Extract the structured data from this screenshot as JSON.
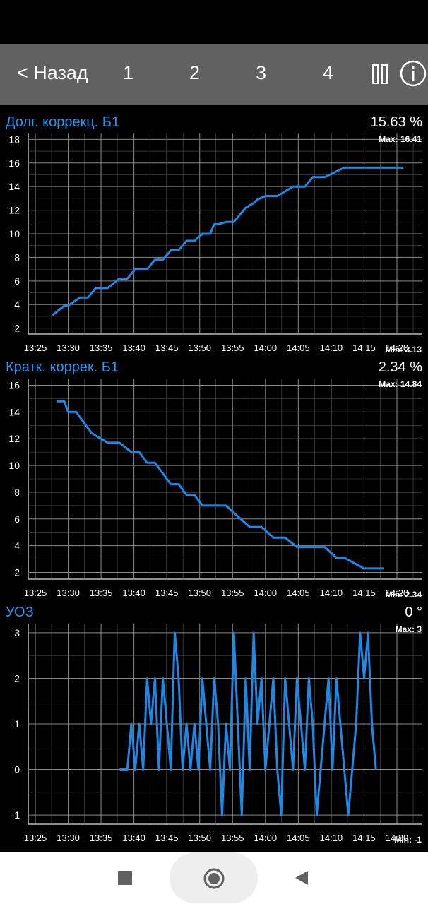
{
  "nav": {
    "back_label": "< Назад",
    "tabs": [
      "1",
      "2",
      "3",
      "4"
    ],
    "pause_icon": "pause-icon",
    "info_icon": "info-icon"
  },
  "colors": {
    "series": "#1e88e5",
    "title": "#2196f3",
    "grid": "#8a8a8a",
    "topbar": "#616161"
  },
  "panels": [
    {
      "title": "Долг. коррекц. Б1",
      "value": "15.63",
      "unit": "%",
      "max_label": "Max: 16.41",
      "min_label": "Min: 3.13"
    },
    {
      "title": "Кратк. коррек. Б1",
      "value": "2.34",
      "unit": "%",
      "max_label": "Max: 14.84",
      "min_label": "Min: 2.34"
    },
    {
      "title": "УОЗ",
      "value": "0",
      "unit": "°",
      "max_label": "Max: 3",
      "min_label": "Min: -1"
    }
  ],
  "chart_data": [
    {
      "type": "line",
      "xticks": [
        "13:25",
        "13:30",
        "13:35",
        "13:40",
        "13:45",
        "13:50",
        "13:55",
        "14:00",
        "14:05",
        "14:10",
        "14:15",
        "14:20"
      ],
      "yticks": [
        2,
        4,
        6,
        8,
        10,
        12,
        14,
        16,
        18
      ],
      "ylim": [
        1.5,
        18.5
      ],
      "x": [
        13.46,
        13.49,
        13.5,
        13.53,
        13.55,
        13.57,
        13.6,
        13.63,
        13.65,
        13.67,
        13.7,
        13.72,
        13.74,
        13.76,
        13.78,
        13.8,
        13.82,
        13.84,
        13.86,
        13.87,
        13.88,
        13.9,
        13.92,
        13.93,
        13.94,
        13.95,
        13.96,
        13.97,
        13.98,
        14.0,
        14.03,
        14.07,
        14.1,
        14.12,
        14.15,
        14.2,
        14.25,
        14.3,
        14.35
      ],
      "series": [
        {
          "values": [
            3.1,
            3.9,
            3.9,
            4.6,
            4.6,
            5.4,
            5.4,
            6.2,
            6.2,
            7.0,
            7.0,
            7.8,
            7.8,
            8.6,
            8.6,
            9.4,
            9.4,
            10.0,
            10.0,
            10.8,
            10.8,
            11.0,
            11.0,
            11.4,
            11.8,
            12.2,
            12.4,
            12.6,
            12.9,
            13.2,
            13.2,
            14.0,
            14.0,
            14.8,
            14.8,
            15.6,
            15.6,
            15.6,
            15.6
          ]
        }
      ]
    },
    {
      "type": "line",
      "xticks": [
        "13:25",
        "13:30",
        "13:35",
        "13:40",
        "13:45",
        "13:50",
        "13:55",
        "14:00",
        "14:05",
        "14:10",
        "14:15",
        "14:20"
      ],
      "yticks": [
        2,
        4,
        6,
        8,
        10,
        12,
        14,
        16
      ],
      "ylim": [
        1.5,
        16.5
      ],
      "x": [
        13.47,
        13.49,
        13.5,
        13.52,
        13.54,
        13.56,
        13.6,
        13.63,
        13.66,
        13.68,
        13.7,
        13.72,
        13.74,
        13.76,
        13.78,
        13.8,
        13.82,
        13.84,
        13.87,
        13.9,
        13.93,
        13.96,
        13.99,
        14.02,
        14.05,
        14.08,
        14.1,
        14.12,
        14.15,
        14.18,
        14.2,
        14.25,
        14.3
      ],
      "series": [
        {
          "values": [
            14.8,
            14.8,
            14.0,
            14.0,
            13.2,
            12.4,
            11.7,
            11.7,
            11.0,
            11.0,
            10.2,
            10.2,
            9.4,
            8.6,
            8.6,
            7.8,
            7.8,
            7.0,
            7.0,
            7.0,
            6.2,
            5.4,
            5.4,
            4.6,
            4.6,
            3.9,
            3.9,
            3.9,
            3.9,
            3.1,
            3.1,
            2.3,
            2.3
          ]
        }
      ]
    },
    {
      "type": "line",
      "xticks": [
        "13:25",
        "13:30",
        "13:35",
        "13:40",
        "13:45",
        "13:50",
        "13:55",
        "14:00",
        "14:05",
        "14:10",
        "14:15",
        "14:20"
      ],
      "yticks": [
        -1,
        0,
        1,
        2,
        3
      ],
      "ylim": [
        -1.2,
        3.2
      ],
      "x": [
        13.63,
        13.65,
        13.66,
        13.67,
        13.68,
        13.69,
        13.7,
        13.71,
        13.72,
        13.73,
        13.74,
        13.75,
        13.76,
        13.77,
        13.78,
        13.79,
        13.8,
        13.81,
        13.82,
        13.83,
        13.84,
        13.85,
        13.86,
        13.87,
        13.88,
        13.89,
        13.9,
        13.91,
        13.92,
        13.93,
        13.94,
        13.95,
        13.96,
        13.97,
        13.98,
        13.99,
        14.0,
        14.01,
        14.02,
        14.03,
        14.04,
        14.05,
        14.06,
        14.07,
        14.08,
        14.09,
        14.1,
        14.11,
        14.12,
        14.13,
        14.14,
        14.15,
        14.16,
        14.17,
        14.18,
        14.19,
        14.2,
        14.21,
        14.22,
        14.23,
        14.24,
        14.25,
        14.26,
        14.27,
        14.28
      ],
      "series": [
        {
          "values": [
            0,
            0,
            1,
            0,
            1,
            0,
            2,
            1,
            2,
            0,
            2,
            1,
            0,
            3,
            2,
            0,
            1,
            0,
            1,
            0,
            2,
            1,
            0,
            2,
            1,
            -1,
            1,
            0,
            3,
            1,
            -1,
            2,
            0,
            3,
            1,
            2,
            0,
            1,
            2,
            0,
            -1,
            2,
            1,
            0,
            2,
            1,
            0,
            2,
            1,
            -1,
            0,
            1,
            2,
            0,
            2,
            1,
            0,
            -1,
            0,
            1,
            3,
            2,
            3,
            1,
            0
          ]
        }
      ]
    }
  ]
}
